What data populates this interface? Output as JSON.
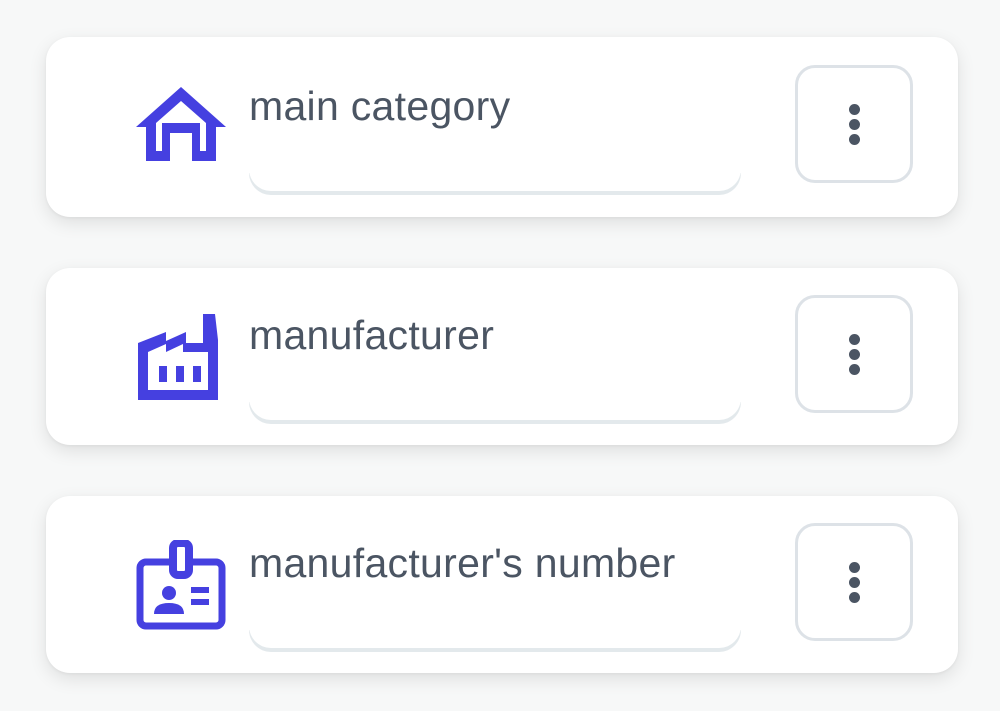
{
  "accent_color": "#4540e0",
  "items": [
    {
      "label": "main category",
      "icon": "home-icon",
      "menu": "more-vertical-icon"
    },
    {
      "label": "manufacturer",
      "icon": "factory-icon",
      "menu": "more-vertical-icon"
    },
    {
      "label": "manufacturer's number",
      "icon": "id-badge-icon",
      "menu": "more-vertical-icon"
    }
  ]
}
